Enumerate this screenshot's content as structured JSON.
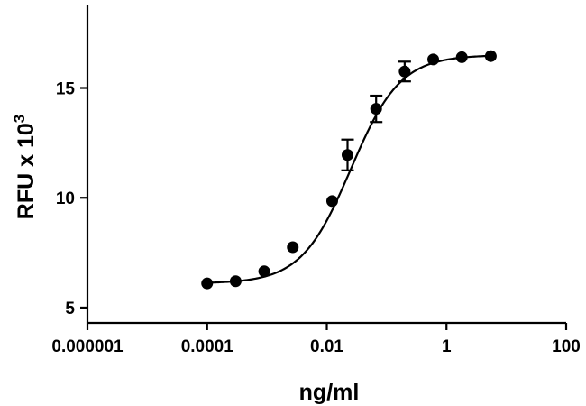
{
  "chart_data": {
    "type": "scatter",
    "title": "",
    "xlabel": "ng/ml",
    "ylabel": {
      "text": "RFU x 10",
      "superscript": "3"
    },
    "xscale": "log",
    "xlim": [
      1e-06,
      100
    ],
    "ylim": [
      4.3,
      18.8
    ],
    "x_ticks": [
      {
        "value": 1e-06,
        "label": "0.000001"
      },
      {
        "value": 0.0001,
        "label": "0.0001"
      },
      {
        "value": 0.01,
        "label": "0.01"
      },
      {
        "value": 1,
        "label": "1"
      },
      {
        "value": 100,
        "label": "100"
      }
    ],
    "y_ticks": [
      {
        "value": 5,
        "label": "5"
      },
      {
        "value": 10,
        "label": "10"
      },
      {
        "value": 15,
        "label": "15"
      }
    ],
    "grid": false,
    "legend": "none",
    "series": [
      {
        "x": [
          0.0001,
          0.0003,
          0.0009,
          0.0027,
          0.0123,
          0.0222,
          0.0667,
          0.2,
          0.6,
          1.8,
          5.5
        ],
        "y": [
          6.1,
          6.2,
          6.65,
          7.75,
          9.85,
          11.95,
          14.05,
          15.75,
          16.3,
          16.4,
          16.45
        ],
        "err": [
          0.05,
          0.05,
          0.05,
          0.05,
          0.1,
          0.7,
          0.6,
          0.45,
          0.05,
          0.05,
          0.05
        ]
      }
    ],
    "fit_curve": {
      "bottom": 6.1,
      "top": 16.5,
      "log_ec50": -1.6,
      "hill": 1.05
    },
    "colors": {
      "marker": "#000000",
      "line": "#000000"
    }
  }
}
